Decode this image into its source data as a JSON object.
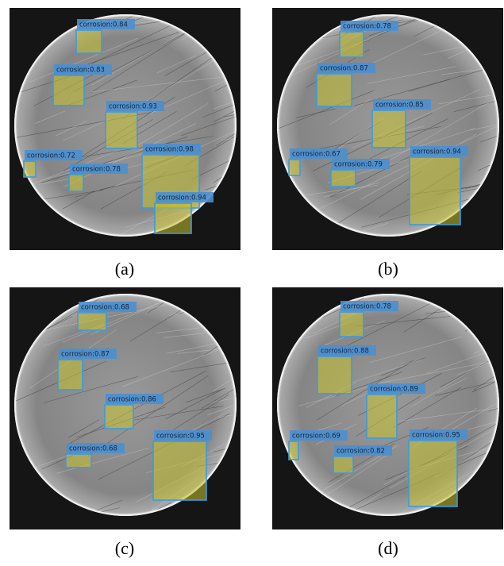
{
  "panels": [
    {
      "caption": "(a)",
      "detections": [
        "corrosion:0.84",
        "corrosion:0.83",
        "corrosion:0.93",
        "corrosion:0.72",
        "corrosion:0.78",
        "corrosion:0.98",
        "corrosion:0.94"
      ]
    },
    {
      "caption": "(b)",
      "detections": [
        "corrosion:0.78",
        "corrosion:0.87",
        "corrosion:0.85",
        "corrosion:0.67",
        "corrosion:0.79",
        "corrosion:0.94"
      ]
    },
    {
      "caption": "(c)",
      "detections": [
        "corrosion:0.68",
        "corrosion:0.87",
        "corrosion:0.86",
        "corrosion:0.68",
        "corrosion:0.95"
      ]
    },
    {
      "caption": "(d)",
      "detections": [
        "corrosion:0.78",
        "corrosion:0.88",
        "corrosion:0.89",
        "corrosion:0.69",
        "corrosion:0.82",
        "corrosion:0.95"
      ]
    }
  ]
}
